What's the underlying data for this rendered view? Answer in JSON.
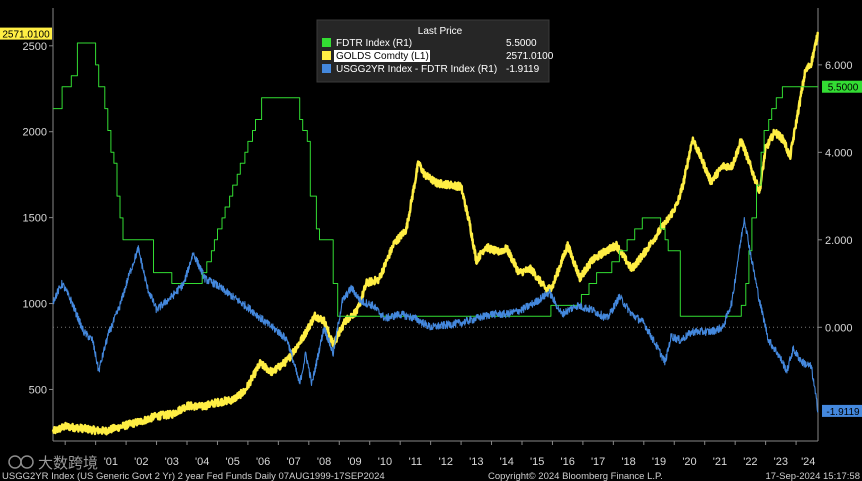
{
  "chart_data": {
    "type": "line",
    "legend": {
      "header": "Last Price",
      "position": "top-center",
      "entries": [
        {
          "name": "FDTR Index  (R1)",
          "value": "5.5000",
          "color": "#33dd33"
        },
        {
          "name": "GOLDS Comdty  (L1)",
          "value": "2571.0100",
          "color": "#ffee44"
        },
        {
          "name": "USGG2YR Index - FDTR Index  (R1)",
          "value": "-1.9119",
          "color": "#4488dd"
        }
      ]
    },
    "x_axis": {
      "range": [
        1999.6,
        2024.72
      ],
      "tick_labels": [
        {
          "label": "'01",
          "x": 2001.5
        },
        {
          "label": "'02",
          "x": 2002.5
        },
        {
          "label": "'03",
          "x": 2003.5
        },
        {
          "label": "'04",
          "x": 2004.5
        },
        {
          "label": "'05",
          "x": 2005.5
        },
        {
          "label": "'06",
          "x": 2006.5
        },
        {
          "label": "'07",
          "x": 2007.5
        },
        {
          "label": "'08",
          "x": 2008.5
        },
        {
          "label": "'09",
          "x": 2009.5
        },
        {
          "label": "'10",
          "x": 2010.5
        },
        {
          "label": "'11",
          "x": 2011.5
        },
        {
          "label": "'12",
          "x": 2012.5
        },
        {
          "label": "'13",
          "x": 2013.5
        },
        {
          "label": "'14",
          "x": 2014.5
        },
        {
          "label": "'15",
          "x": 2015.5
        },
        {
          "label": "'16",
          "x": 2016.5
        },
        {
          "label": "'17",
          "x": 2017.5
        },
        {
          "label": "'18",
          "x": 2018.5
        },
        {
          "label": "'19",
          "x": 2019.5
        },
        {
          "label": "'20",
          "x": 2020.5
        },
        {
          "label": "'21",
          "x": 2021.5
        },
        {
          "label": "'22",
          "x": 2022.5
        },
        {
          "label": "'23",
          "x": 2023.5
        },
        {
          "label": "'24",
          "x": 2024.4
        }
      ]
    },
    "left_axis": {
      "range": [
        200,
        2720
      ],
      "ticks": [
        500,
        1000,
        1500,
        2000,
        2500
      ],
      "tick_labels": [
        "500",
        "1000",
        "1500",
        "2000",
        "2500"
      ],
      "last_value_tag": "2571.0100",
      "last_value": 2571.01,
      "tag_color": "#ffee44"
    },
    "right_axis": {
      "range": [
        -2.6,
        7.3
      ],
      "ticks": [
        0,
        2,
        4,
        6
      ],
      "tick_labels": [
        "0.000",
        "2.000",
        "4.000",
        "6.000"
      ],
      "tags": [
        {
          "text": "5.5000",
          "value": 5.5,
          "color": "#33dd33"
        },
        {
          "text": "-1.9119",
          "value": -1.9119,
          "color": "#4488dd"
        }
      ]
    },
    "series": [
      {
        "name": "GOLDS Comdty",
        "axis": "left",
        "color": "#ffee44",
        "style": "noisy",
        "points": [
          [
            1999.6,
            255
          ],
          [
            2000.0,
            285
          ],
          [
            2000.5,
            275
          ],
          [
            2001.0,
            262
          ],
          [
            2001.3,
            258
          ],
          [
            2001.8,
            282
          ],
          [
            2002.5,
            315
          ],
          [
            2003.0,
            345
          ],
          [
            2003.5,
            355
          ],
          [
            2004.0,
            405
          ],
          [
            2004.5,
            400
          ],
          [
            2005.0,
            425
          ],
          [
            2005.5,
            440
          ],
          [
            2005.9,
            490
          ],
          [
            2006.4,
            650
          ],
          [
            2006.8,
            600
          ],
          [
            2007.3,
            670
          ],
          [
            2007.8,
            800
          ],
          [
            2008.2,
            930
          ],
          [
            2008.5,
            900
          ],
          [
            2008.8,
            760
          ],
          [
            2009.2,
            900
          ],
          [
            2009.6,
            960
          ],
          [
            2009.9,
            1120
          ],
          [
            2010.3,
            1140
          ],
          [
            2010.8,
            1350
          ],
          [
            2011.2,
            1430
          ],
          [
            2011.6,
            1820
          ],
          [
            2011.8,
            1750
          ],
          [
            2012.2,
            1700
          ],
          [
            2012.7,
            1690
          ],
          [
            2013.0,
            1680
          ],
          [
            2013.3,
            1450
          ],
          [
            2013.5,
            1250
          ],
          [
            2013.8,
            1330
          ],
          [
            2014.2,
            1300
          ],
          [
            2014.5,
            1320
          ],
          [
            2014.9,
            1180
          ],
          [
            2015.3,
            1200
          ],
          [
            2015.8,
            1080
          ],
          [
            2016.0,
            1100
          ],
          [
            2016.5,
            1340
          ],
          [
            2016.9,
            1150
          ],
          [
            2017.3,
            1250
          ],
          [
            2017.7,
            1300
          ],
          [
            2018.1,
            1340
          ],
          [
            2018.6,
            1200
          ],
          [
            2019.0,
            1290
          ],
          [
            2019.5,
            1420
          ],
          [
            2019.8,
            1490
          ],
          [
            2020.1,
            1580
          ],
          [
            2020.3,
            1700
          ],
          [
            2020.6,
            1960
          ],
          [
            2020.9,
            1840
          ],
          [
            2021.2,
            1710
          ],
          [
            2021.6,
            1800
          ],
          [
            2021.9,
            1800
          ],
          [
            2022.2,
            1950
          ],
          [
            2022.5,
            1800
          ],
          [
            2022.8,
            1650
          ],
          [
            2023.0,
            1900
          ],
          [
            2023.3,
            2000
          ],
          [
            2023.6,
            1950
          ],
          [
            2023.8,
            1850
          ],
          [
            2024.0,
            2050
          ],
          [
            2024.3,
            2350
          ],
          [
            2024.5,
            2400
          ],
          [
            2024.72,
            2571
          ]
        ]
      },
      {
        "name": "FDTR Index",
        "axis": "right",
        "color": "#33dd33",
        "style": "step",
        "points": [
          [
            1999.6,
            5.0
          ],
          [
            1999.9,
            5.5
          ],
          [
            2000.2,
            5.75
          ],
          [
            2000.4,
            6.5
          ],
          [
            2001.0,
            6.0
          ],
          [
            2001.1,
            5.5
          ],
          [
            2001.3,
            5.0
          ],
          [
            2001.4,
            4.5
          ],
          [
            2001.5,
            4.0
          ],
          [
            2001.6,
            3.75
          ],
          [
            2001.7,
            3.0
          ],
          [
            2001.8,
            2.5
          ],
          [
            2001.9,
            2.0
          ],
          [
            2002.9,
            1.25
          ],
          [
            2003.5,
            1.0
          ],
          [
            2004.5,
            1.25
          ],
          [
            2004.65,
            1.5
          ],
          [
            2004.8,
            1.75
          ],
          [
            2004.9,
            2.0
          ],
          [
            2005.0,
            2.25
          ],
          [
            2005.15,
            2.5
          ],
          [
            2005.25,
            2.75
          ],
          [
            2005.4,
            3.0
          ],
          [
            2005.5,
            3.25
          ],
          [
            2005.65,
            3.5
          ],
          [
            2005.75,
            3.75
          ],
          [
            2005.9,
            4.0
          ],
          [
            2006.0,
            4.25
          ],
          [
            2006.15,
            4.5
          ],
          [
            2006.25,
            4.75
          ],
          [
            2006.45,
            5.25
          ],
          [
            2007.7,
            4.75
          ],
          [
            2007.8,
            4.5
          ],
          [
            2007.95,
            4.25
          ],
          [
            2008.05,
            3.0
          ],
          [
            2008.25,
            2.25
          ],
          [
            2008.35,
            2.0
          ],
          [
            2008.8,
            1.0
          ],
          [
            2008.95,
            0.25
          ],
          [
            2015.95,
            0.5
          ],
          [
            2016.95,
            0.75
          ],
          [
            2017.2,
            1.0
          ],
          [
            2017.45,
            1.25
          ],
          [
            2017.95,
            1.5
          ],
          [
            2018.2,
            1.75
          ],
          [
            2018.45,
            2.0
          ],
          [
            2018.7,
            2.25
          ],
          [
            2018.95,
            2.5
          ],
          [
            2019.55,
            2.25
          ],
          [
            2019.7,
            2.0
          ],
          [
            2019.8,
            1.75
          ],
          [
            2020.2,
            0.25
          ],
          [
            2022.2,
            0.5
          ],
          [
            2022.35,
            1.0
          ],
          [
            2022.45,
            1.75
          ],
          [
            2022.55,
            2.5
          ],
          [
            2022.7,
            3.25
          ],
          [
            2022.85,
            4.0
          ],
          [
            2022.95,
            4.5
          ],
          [
            2023.1,
            4.75
          ],
          [
            2023.2,
            5.0
          ],
          [
            2023.35,
            5.25
          ],
          [
            2023.55,
            5.5
          ],
          [
            2024.72,
            5.5
          ]
        ]
      },
      {
        "name": "USGG2YR Index - FDTR Index",
        "axis": "right",
        "color": "#4488dd",
        "style": "noisy",
        "points": [
          [
            1999.6,
            0.6
          ],
          [
            1999.9,
            1.0
          ],
          [
            2000.2,
            0.6
          ],
          [
            2000.6,
            -0.1
          ],
          [
            2000.9,
            -0.3
          ],
          [
            2001.1,
            -1.0
          ],
          [
            2001.4,
            -0.2
          ],
          [
            2001.8,
            0.5
          ],
          [
            2002.1,
            1.2
          ],
          [
            2002.4,
            1.8
          ],
          [
            2002.7,
            0.9
          ],
          [
            2003.0,
            0.4
          ],
          [
            2003.5,
            0.7
          ],
          [
            2003.9,
            1.0
          ],
          [
            2004.2,
            1.7
          ],
          [
            2004.6,
            1.1
          ],
          [
            2004.9,
            1.0
          ],
          [
            2005.3,
            0.8
          ],
          [
            2005.7,
            0.6
          ],
          [
            2006.1,
            0.4
          ],
          [
            2006.6,
            0.1
          ],
          [
            2007.0,
            -0.1
          ],
          [
            2007.3,
            -0.3
          ],
          [
            2007.7,
            -1.3
          ],
          [
            2007.9,
            -0.6
          ],
          [
            2008.1,
            -1.3
          ],
          [
            2008.5,
            0.0
          ],
          [
            2008.8,
            -0.6
          ],
          [
            2009.1,
            0.6
          ],
          [
            2009.4,
            0.9
          ],
          [
            2009.7,
            0.6
          ],
          [
            2010.1,
            0.5
          ],
          [
            2010.5,
            0.2
          ],
          [
            2011.0,
            0.3
          ],
          [
            2011.5,
            0.2
          ],
          [
            2012.0,
            0.0
          ],
          [
            2013.0,
            0.1
          ],
          [
            2014.0,
            0.3
          ],
          [
            2014.5,
            0.3
          ],
          [
            2015.0,
            0.4
          ],
          [
            2015.5,
            0.6
          ],
          [
            2015.9,
            0.8
          ],
          [
            2016.3,
            0.3
          ],
          [
            2016.8,
            0.5
          ],
          [
            2017.3,
            0.4
          ],
          [
            2017.8,
            0.2
          ],
          [
            2018.2,
            0.7
          ],
          [
            2018.6,
            0.3
          ],
          [
            2019.0,
            0.1
          ],
          [
            2019.4,
            -0.4
          ],
          [
            2019.7,
            -0.8
          ],
          [
            2019.9,
            -0.2
          ],
          [
            2020.2,
            -0.3
          ],
          [
            2020.6,
            -0.1
          ],
          [
            2021.2,
            -0.1
          ],
          [
            2021.6,
            0.0
          ],
          [
            2021.9,
            0.6
          ],
          [
            2022.1,
            1.6
          ],
          [
            2022.3,
            2.5
          ],
          [
            2022.5,
            1.7
          ],
          [
            2022.8,
            0.6
          ],
          [
            2023.1,
            -0.3
          ],
          [
            2023.4,
            -0.6
          ],
          [
            2023.7,
            -1.0
          ],
          [
            2023.9,
            -0.5
          ],
          [
            2024.2,
            -0.8
          ],
          [
            2024.5,
            -0.9
          ],
          [
            2024.72,
            -1.91
          ]
        ]
      }
    ]
  },
  "footer": {
    "left": "USGG2YR Index (US Generic Govt 2 Yr) 2 year Fed Funds  Daily 07AUG1999-17SEP2024",
    "center": "Copyright© 2024 Bloomberg Finance L.P.",
    "right": "17-Sep-2024 15:17:58"
  },
  "watermark": {
    "text": "大数跨境"
  },
  "colors": {
    "background": "#000000",
    "axis": "#888888",
    "text": "#d8d8d8"
  }
}
